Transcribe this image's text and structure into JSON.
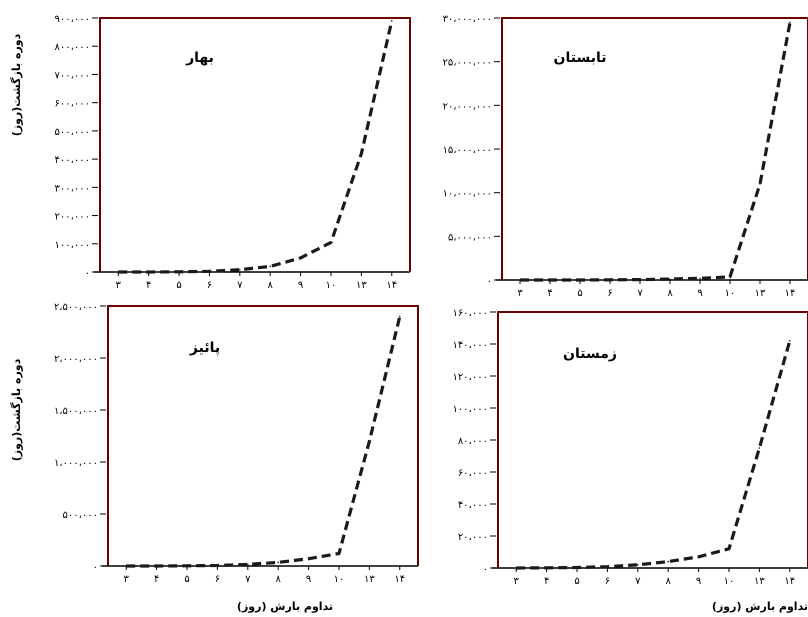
{
  "y_axis_title": "دوره بازگشت(روز)",
  "x_axis_title": "تداوم بارش (روز)",
  "colors": {
    "line": "#1a1a1a",
    "frame": "#6b0000",
    "axis": "#000000"
  },
  "chart_data": [
    {
      "type": "line",
      "title": "بهار",
      "categories": [
        3,
        4,
        5,
        6,
        7,
        8,
        9,
        10,
        13,
        14
      ],
      "tick_labels": [
        "۳",
        "۴",
        "۵",
        "۶",
        "۷",
        "۸",
        "۹",
        "۱۰",
        "۱۳",
        "۱۴"
      ],
      "values": [
        0,
        100,
        600,
        2500,
        8000,
        20000,
        50000,
        105000,
        420000,
        890000
      ],
      "ylim": [
        0,
        900000
      ],
      "yticks": [
        "۰",
        "۱۰۰،۰۰۰",
        "۲۰۰،۰۰۰",
        "۳۰۰،۰۰۰",
        "۴۰۰،۰۰۰",
        "۵۰۰،۰۰۰",
        "۶۰۰،۰۰۰",
        "۷۰۰،۰۰۰",
        "۸۰۰،۰۰۰",
        "۹۰۰،۰۰۰"
      ],
      "line_style": "dashed"
    },
    {
      "type": "line",
      "title": "تابستان",
      "categories": [
        3,
        4,
        5,
        6,
        7,
        8,
        9,
        10,
        13,
        14
      ],
      "tick_labels": [
        "۳",
        "۴",
        "۵",
        "۶",
        "۷",
        "۸",
        "۹",
        "۱۰",
        "۱۳",
        "۱۴"
      ],
      "values": [
        0,
        500,
        5000,
        20000,
        50000,
        100000,
        200000,
        350000,
        11000000,
        29500000
      ],
      "ylim": [
        0,
        30000000
      ],
      "yticks": [
        "۰",
        "۵،۰۰۰،۰۰۰",
        "۱۰،۰۰۰،۰۰۰",
        "۱۵،۰۰۰،۰۰۰",
        "۲۰،۰۰۰،۰۰۰",
        "۲۵،۰۰۰،۰۰۰",
        "۳۰،۰۰۰،۰۰۰"
      ],
      "line_style": "dashed"
    },
    {
      "type": "line",
      "title": "پائیز",
      "categories": [
        3,
        4,
        5,
        6,
        7,
        8,
        9,
        10,
        13,
        14
      ],
      "tick_labels": [
        "۳",
        "۴",
        "۵",
        "۶",
        "۷",
        "۸",
        "۹",
        "۱۰",
        "۱۳",
        "۱۴"
      ],
      "values": [
        0,
        200,
        1500,
        5000,
        15000,
        35000,
        70000,
        120000,
        1200000,
        2400000
      ],
      "ylim": [
        0,
        2500000
      ],
      "yticks": [
        "۰",
        "۵۰۰،۰۰۰",
        "۱،۰۰۰،۰۰۰",
        "۱،۵۰۰،۰۰۰",
        "۲،۰۰۰،۰۰۰",
        "۲،۵۰۰،۰۰۰"
      ],
      "line_style": "dashed"
    },
    {
      "type": "line",
      "title": "زمستان",
      "categories": [
        3,
        4,
        5,
        6,
        7,
        8,
        9,
        10,
        13,
        14
      ],
      "tick_labels": [
        "۳",
        "۴",
        "۵",
        "۶",
        "۷",
        "۸",
        "۹",
        "۱۰",
        "۱۳",
        "۱۴"
      ],
      "values": [
        0,
        100,
        300,
        800,
        2000,
        4000,
        7000,
        12000,
        75000,
        142000
      ],
      "ylim": [
        0,
        160000
      ],
      "yticks": [
        "۰",
        "۲۰،۰۰۰",
        "۴۰،۰۰۰",
        "۶۰،۰۰۰",
        "۸۰،۰۰۰",
        "۱۰۰،۰۰۰",
        "۱۲۰،۰۰۰",
        "۱۴۰،۰۰۰",
        "۱۶۰،۰۰۰"
      ],
      "line_style": "dashed"
    }
  ]
}
